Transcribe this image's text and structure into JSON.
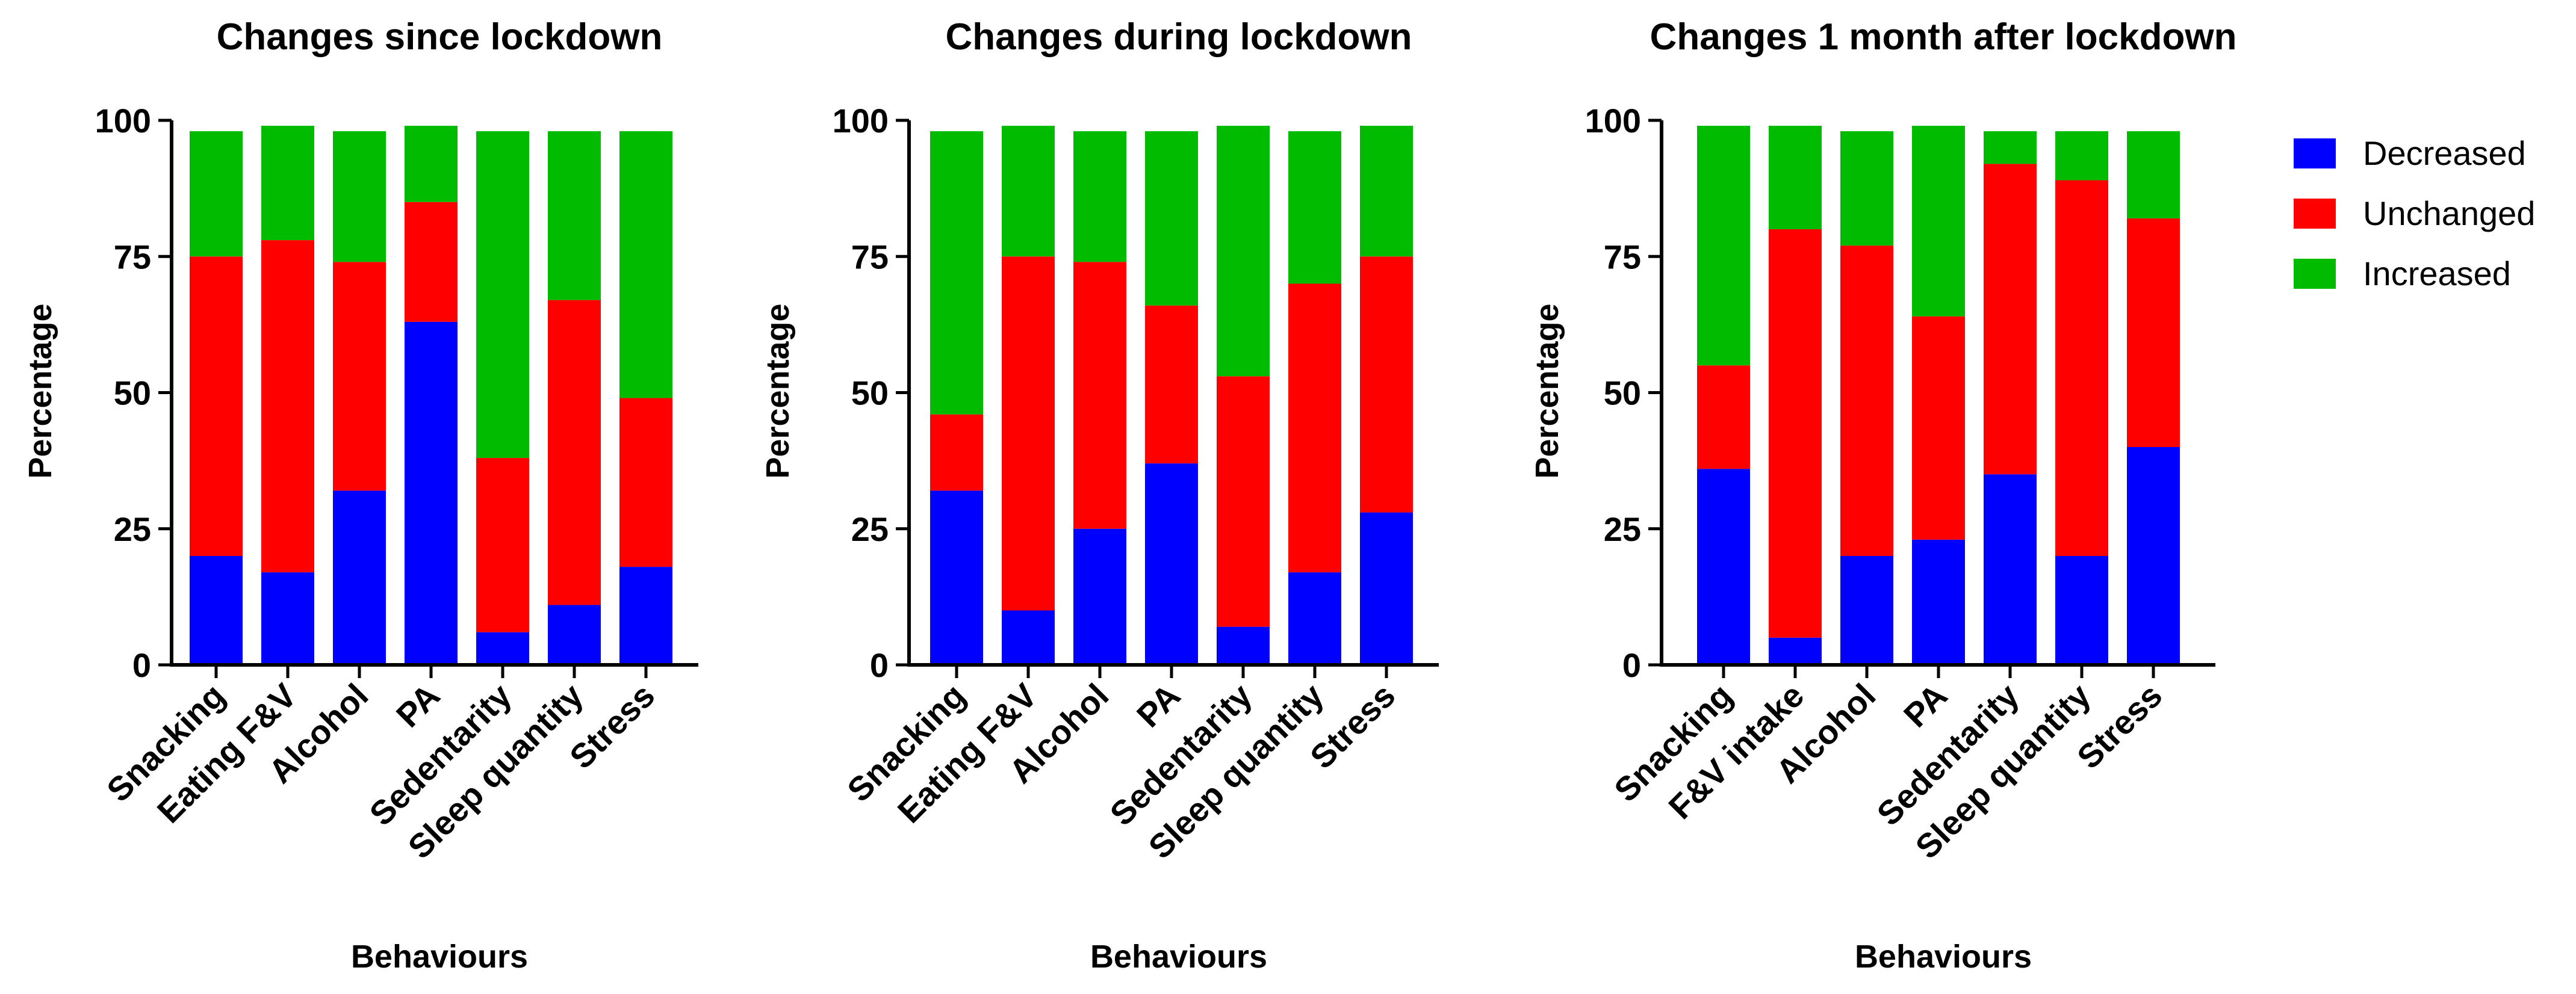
{
  "chart_data": [
    {
      "type": "bar",
      "stacked": true,
      "title": "Changes since lockdown",
      "xlabel": "Behaviours",
      "ylabel": "Percentage",
      "ylim": [
        0,
        100
      ],
      "yticks": [
        "0",
        "25",
        "50",
        "75",
        "100"
      ],
      "categories": [
        "Snacking",
        "Eating F&V",
        "Alcohol",
        "PA",
        "Sedentarity",
        "Sleep quantity",
        "Stress"
      ],
      "series": [
        {
          "name": "Decreased",
          "values": [
            20,
            17,
            32,
            63,
            6,
            11,
            18
          ]
        },
        {
          "name": "Unchanged",
          "values": [
            55,
            61,
            42,
            22,
            32,
            56,
            31
          ]
        },
        {
          "name": "Increased",
          "values": [
            23,
            21,
            24,
            14,
            60,
            31,
            49
          ]
        }
      ]
    },
    {
      "type": "bar",
      "stacked": true,
      "title": "Changes during lockdown",
      "xlabel": "Behaviours",
      "ylabel": "Percentage",
      "ylim": [
        0,
        100
      ],
      "yticks": [
        "0",
        "25",
        "50",
        "75",
        "100"
      ],
      "categories": [
        "Snacking",
        "Eating F&V",
        "Alcohol",
        "PA",
        "Sedentarity",
        "Sleep quantity",
        "Stress"
      ],
      "series": [
        {
          "name": "Decreased",
          "values": [
            32,
            10,
            25,
            37,
            7,
            17,
            28
          ]
        },
        {
          "name": "Unchanged",
          "values": [
            14,
            65,
            49,
            29,
            46,
            53,
            47
          ]
        },
        {
          "name": "Increased",
          "values": [
            52,
            24,
            24,
            32,
            46,
            28,
            24
          ]
        }
      ]
    },
    {
      "type": "bar",
      "stacked": true,
      "title": "Changes 1 month after lockdown",
      "xlabel": "Behaviours",
      "ylabel": "Percentage",
      "ylim": [
        0,
        100
      ],
      "yticks": [
        "0",
        "25",
        "50",
        "75",
        "100"
      ],
      "categories": [
        "Snacking",
        "F&V intake",
        "Alcohol",
        "PA",
        "Sedentarity",
        "Sleep quantity",
        "Stress"
      ],
      "series": [
        {
          "name": "Decreased",
          "values": [
            36,
            5,
            20,
            23,
            35,
            20,
            40
          ]
        },
        {
          "name": "Unchanged",
          "values": [
            19,
            75,
            57,
            41,
            57,
            69,
            42
          ]
        },
        {
          "name": "Increased",
          "values": [
            44,
            19,
            21,
            35,
            6,
            9,
            16
          ]
        }
      ]
    }
  ],
  "legend": {
    "position": "right",
    "entries": [
      {
        "label": "Decreased",
        "color": "#0000ff"
      },
      {
        "label": "Unchanged",
        "color": "#ff0000"
      },
      {
        "label": "Increased",
        "color": "#00bb00"
      }
    ]
  }
}
